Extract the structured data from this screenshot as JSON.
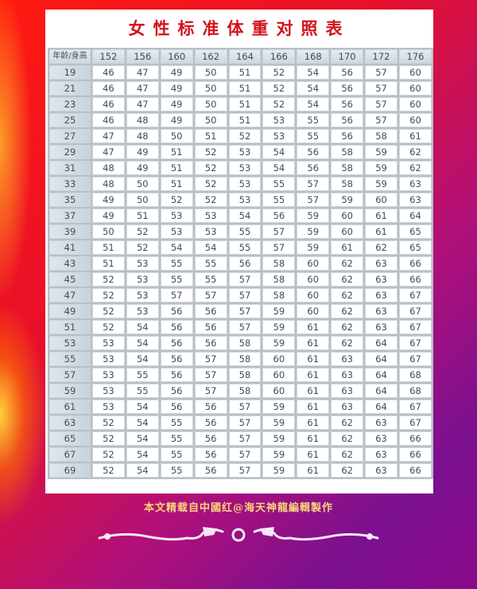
{
  "title": "女性标准体重对照表",
  "table": {
    "corner": "年龄/身高",
    "heights": [
      "152",
      "156",
      "160",
      "162",
      "164",
      "166",
      "168",
      "170",
      "172",
      "176"
    ],
    "rows": [
      {
        "age": "19",
        "w": [
          "46",
          "47",
          "49",
          "50",
          "51",
          "52",
          "54",
          "56",
          "57",
          "60"
        ]
      },
      {
        "age": "21",
        "w": [
          "46",
          "47",
          "49",
          "50",
          "51",
          "52",
          "54",
          "56",
          "57",
          "60"
        ]
      },
      {
        "age": "23",
        "w": [
          "46",
          "47",
          "49",
          "50",
          "51",
          "52",
          "54",
          "56",
          "57",
          "60"
        ]
      },
      {
        "age": "25",
        "w": [
          "46",
          "48",
          "49",
          "50",
          "51",
          "53",
          "55",
          "56",
          "57",
          "60"
        ]
      },
      {
        "age": "27",
        "w": [
          "47",
          "48",
          "50",
          "51",
          "52",
          "53",
          "55",
          "56",
          "58",
          "61"
        ]
      },
      {
        "age": "29",
        "w": [
          "47",
          "49",
          "51",
          "52",
          "53",
          "54",
          "56",
          "58",
          "59",
          "62"
        ]
      },
      {
        "age": "31",
        "w": [
          "48",
          "49",
          "51",
          "52",
          "53",
          "54",
          "56",
          "58",
          "59",
          "62"
        ]
      },
      {
        "age": "33",
        "w": [
          "48",
          "50",
          "51",
          "52",
          "53",
          "55",
          "57",
          "58",
          "59",
          "63"
        ]
      },
      {
        "age": "35",
        "w": [
          "49",
          "50",
          "52",
          "52",
          "53",
          "55",
          "57",
          "59",
          "60",
          "63"
        ]
      },
      {
        "age": "37",
        "w": [
          "49",
          "51",
          "53",
          "53",
          "54",
          "56",
          "59",
          "60",
          "61",
          "64"
        ]
      },
      {
        "age": "39",
        "w": [
          "50",
          "52",
          "53",
          "53",
          "55",
          "57",
          "59",
          "60",
          "61",
          "65"
        ]
      },
      {
        "age": "41",
        "w": [
          "51",
          "52",
          "54",
          "54",
          "55",
          "57",
          "59",
          "61",
          "62",
          "65"
        ]
      },
      {
        "age": "43",
        "w": [
          "51",
          "53",
          "55",
          "55",
          "56",
          "58",
          "60",
          "62",
          "63",
          "66"
        ]
      },
      {
        "age": "45",
        "w": [
          "52",
          "53",
          "55",
          "55",
          "57",
          "58",
          "60",
          "62",
          "63",
          "66"
        ]
      },
      {
        "age": "47",
        "w": [
          "52",
          "53",
          "57",
          "57",
          "57",
          "58",
          "60",
          "62",
          "63",
          "67"
        ]
      },
      {
        "age": "49",
        "w": [
          "52",
          "53",
          "56",
          "56",
          "57",
          "59",
          "60",
          "62",
          "63",
          "67"
        ]
      },
      {
        "age": "51",
        "w": [
          "52",
          "54",
          "56",
          "56",
          "57",
          "59",
          "61",
          "62",
          "63",
          "67"
        ]
      },
      {
        "age": "53",
        "w": [
          "53",
          "54",
          "56",
          "56",
          "58",
          "59",
          "61",
          "62",
          "64",
          "67"
        ]
      },
      {
        "age": "55",
        "w": [
          "53",
          "54",
          "56",
          "57",
          "58",
          "60",
          "61",
          "63",
          "64",
          "67"
        ]
      },
      {
        "age": "57",
        "w": [
          "53",
          "55",
          "56",
          "57",
          "58",
          "60",
          "61",
          "63",
          "64",
          "68"
        ]
      },
      {
        "age": "59",
        "w": [
          "53",
          "55",
          "56",
          "57",
          "58",
          "60",
          "61",
          "63",
          "64",
          "68"
        ]
      },
      {
        "age": "61",
        "w": [
          "53",
          "54",
          "56",
          "56",
          "57",
          "59",
          "61",
          "63",
          "64",
          "67"
        ]
      },
      {
        "age": "63",
        "w": [
          "52",
          "54",
          "55",
          "56",
          "57",
          "59",
          "61",
          "62",
          "63",
          "67"
        ]
      },
      {
        "age": "65",
        "w": [
          "52",
          "54",
          "55",
          "56",
          "57",
          "59",
          "61",
          "62",
          "63",
          "66"
        ]
      },
      {
        "age": "67",
        "w": [
          "52",
          "54",
          "55",
          "56",
          "57",
          "59",
          "61",
          "62",
          "63",
          "66"
        ]
      },
      {
        "age": "69",
        "w": [
          "52",
          "54",
          "55",
          "56",
          "57",
          "59",
          "61",
          "62",
          "63",
          "66"
        ]
      }
    ]
  },
  "footer": "本文精载自中國红@海天神龍編輯製作",
  "decoration": "twin-dragon-ornament",
  "colors": {
    "title": "#d4121c",
    "footer": "#f6d77a",
    "cell_text": "#3a4e5e"
  }
}
